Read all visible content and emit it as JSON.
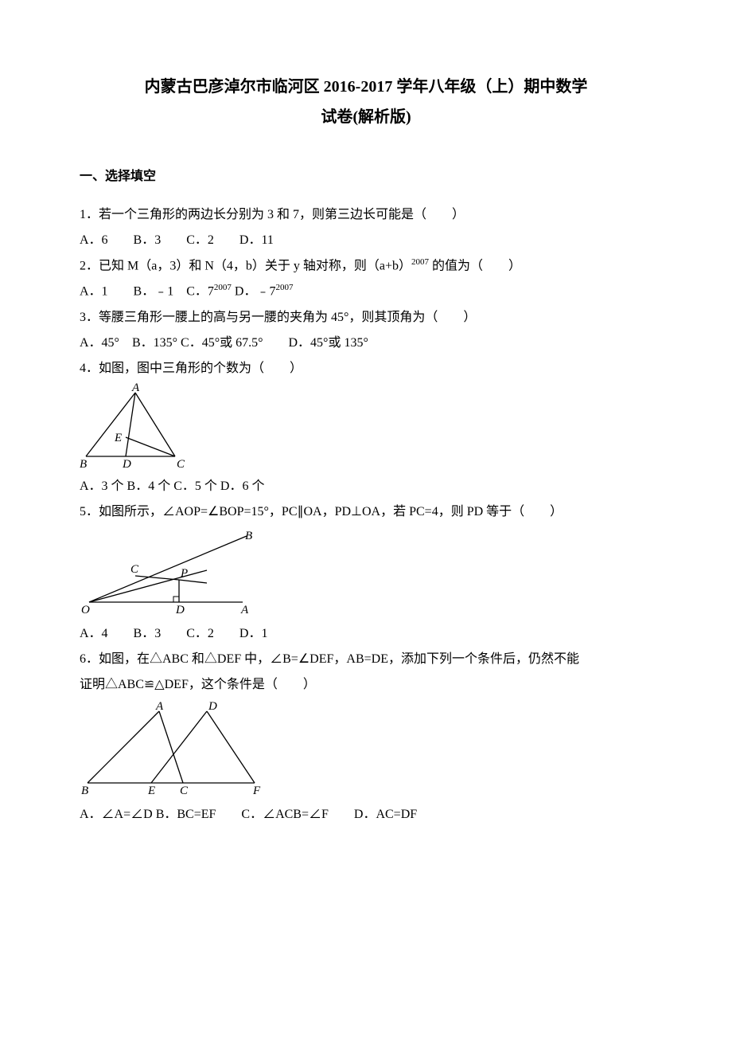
{
  "title_line1": "内蒙古巴彦淖尔市临河区 2016-2017 学年八年级（上）期中数学",
  "title_line2": "试卷(解析版)",
  "section1_head": "一、选择填空",
  "q1": {
    "text": "1．若一个三角形的两边长分别为 3 和 7，则第三边长可能是（　　）",
    "opts": "A．6　　B．3　　C．2　　D．11"
  },
  "q2": {
    "pre": "2．已知 M（a，3）和 N（4，b）关于 y 轴对称，则（a+b）",
    "exp1": "2007",
    "mid": " 的值为（　　）",
    "opts_pre": "A．1　　B．﹣1　C．7",
    "opts_exp1": "2007",
    "opts_mid": " D．﹣7",
    "opts_exp2": "2007"
  },
  "q3": {
    "text": "3．等腰三角形一腰上的高与另一腰的夹角为 45°，则其顶角为（　　）",
    "opts": "A．45°　B．135°  C．45°或 67.5°　　D．45°或 135°"
  },
  "q4": {
    "text": "4．如图，图中三角形的个数为（　　）",
    "opts": "A．3 个  B．4 个  C．5 个  D．6 个"
  },
  "q5": {
    "text": "5．如图所示，∠AOP=∠BOP=15°，PC∥OA，PD⊥OA，若 PC=4，则 PD 等于（　　）",
    "opts": "A．4　　B．3　　C．2　　D．1"
  },
  "q6": {
    "text1": "6．如图，在△ABC 和△DEF 中，∠B=∠DEF，AB=DE，添加下列一个条件后，仍然不能",
    "text2": "证明△ABC≌△DEF，这个条件是（　　）",
    "opts": "A．∠A=∠D  B．BC=EF　　C．∠ACB=∠F　　D．AC=DF"
  },
  "fig4": {
    "labels": {
      "A": "A",
      "B": "B",
      "C": "C",
      "D": "D",
      "E": "E"
    },
    "stroke": "#000000",
    "fill": "#ffffff",
    "font": "italic 15px serif"
  },
  "fig5": {
    "labels": {
      "O": "O",
      "A": "A",
      "B": "B",
      "C": "C",
      "D": "D",
      "P": "P"
    },
    "stroke": "#000000",
    "font": "italic 15px serif"
  },
  "fig6": {
    "labels": {
      "A": "A",
      "B": "B",
      "C": "C",
      "D": "D",
      "E": "E",
      "F": "F"
    },
    "stroke": "#000000",
    "font": "italic 15px serif"
  }
}
